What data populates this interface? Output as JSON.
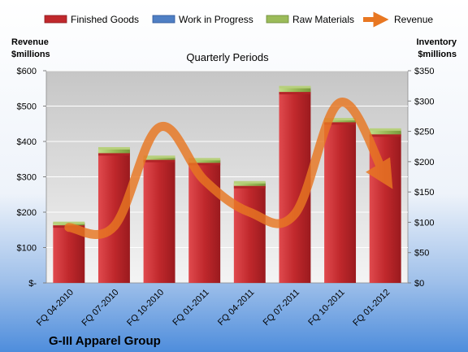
{
  "chart_data": {
    "type": "bar",
    "subtitle": "Quarterly Periods",
    "company": "G-III Apparel Group",
    "categories": [
      "FQ 04-2010",
      "FQ 07-2010",
      "FQ 10-2010",
      "FQ 01-2011",
      "FQ 04-2011",
      "FQ 07-2011",
      "FQ 10-2011",
      "FQ 01-2012"
    ],
    "stacked": true,
    "series": [
      {
        "name": "Finished Goods",
        "axis": "right",
        "color": "#c0282c",
        "values": [
          95,
          214,
          203,
          198,
          160,
          315,
          265,
          245
        ]
      },
      {
        "name": "Work in Progress",
        "axis": "right",
        "color": "#4f7fc4",
        "values": [
          0,
          0,
          0,
          0,
          0,
          0,
          0,
          0
        ]
      },
      {
        "name": "Raw Materials",
        "axis": "right",
        "color": "#9bbb59",
        "values": [
          4,
          8,
          5,
          6,
          6,
          8,
          5,
          8
        ]
      },
      {
        "name": "Revenue",
        "axis": "left",
        "type": "line",
        "color": "#e87722",
        "values": [
          157,
          160,
          440,
          290,
          200,
          195,
          510,
          300
        ]
      }
    ],
    "y_left": {
      "label_line1": "Revenue",
      "label_line2": "$millions",
      "min": 0,
      "max": 600,
      "ticks": [
        0,
        100,
        200,
        300,
        400,
        500,
        600
      ],
      "tick_labels": [
        "$-",
        "$100",
        "$200",
        "$300",
        "$400",
        "$500",
        "$600"
      ]
    },
    "y_right": {
      "label_line1": "Inventory",
      "label_line2": "$millions",
      "min": 0,
      "max": 350,
      "ticks": [
        0,
        50,
        100,
        150,
        200,
        250,
        300,
        350
      ],
      "tick_labels": [
        "$0",
        "$50",
        "$100",
        "$150",
        "$200",
        "$250",
        "$300",
        "$350"
      ]
    },
    "grid": true,
    "legend_position": "top"
  }
}
